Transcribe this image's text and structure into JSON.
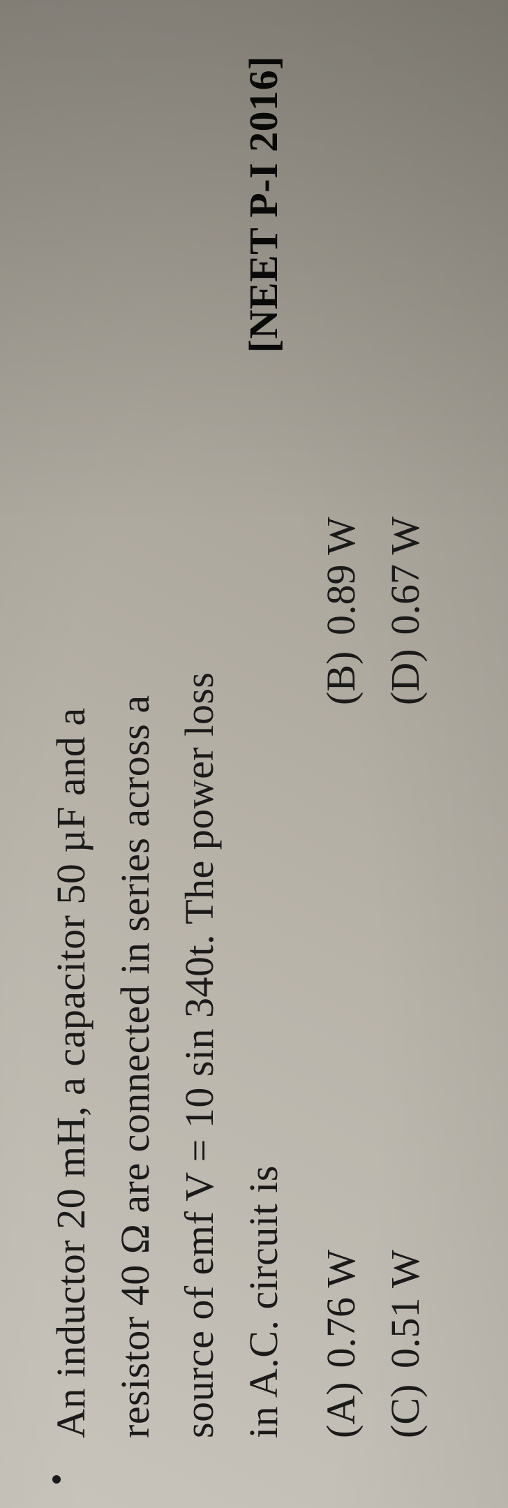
{
  "question": {
    "line1_prefix": "An inductor 20 mH, a capacitor 50 µF and a",
    "line2": "resistor 40 Ω are connected in series across a",
    "line3": "source of emf V = 10 sin 340t. The power loss",
    "line4": "in A.C. circuit is",
    "source_tag": "[NEET P-I 2016]"
  },
  "options": {
    "a": {
      "label": "(A)",
      "value": "0.76 W"
    },
    "b": {
      "label": "(B)",
      "value": "0.89 W"
    },
    "c": {
      "label": "(C)",
      "value": "0.51 W"
    },
    "d": {
      "label": "(D)",
      "value": "0.67 W"
    }
  },
  "styling": {
    "font_family": "Georgia, Times New Roman, serif",
    "text_color": "#1a1a1a",
    "font_size_pt": 44,
    "background_gradient_start": "#c8c4bc",
    "background_gradient_end": "#989488",
    "rotation_deg": -90,
    "container_width": 728,
    "container_height": 2160,
    "paper_type": "textbook_photo",
    "lighting": "uneven_shadow_right"
  }
}
